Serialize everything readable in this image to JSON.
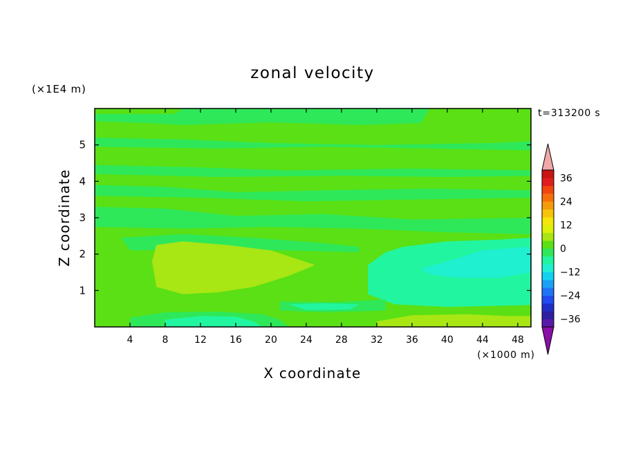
{
  "chart_data": {
    "type": "heatmap",
    "title": "zonal velocity",
    "xlabel": "X coordinate",
    "ylabel": "Z coordinate",
    "x_scale_label": "(×1000 m)",
    "y_scale_label": "(×1E4 m)",
    "time_label": "t=313200 s",
    "xlim": [
      0,
      49.5
    ],
    "ylim": [
      0,
      6
    ],
    "x_ticks": [
      4,
      8,
      12,
      16,
      20,
      24,
      28,
      32,
      36,
      40,
      44,
      48
    ],
    "y_ticks": [
      1,
      2,
      3,
      4,
      5
    ],
    "background_value": 1,
    "regions": [
      {
        "name": "upper-teal-band",
        "value": -3,
        "points": [
          [
            0,
            5.65
          ],
          [
            6,
            5.6
          ],
          [
            10,
            5.55
          ],
          [
            20,
            5.62
          ],
          [
            30,
            5.55
          ],
          [
            37,
            5.6
          ],
          [
            38,
            6
          ],
          [
            10,
            6
          ],
          [
            9,
            5.85
          ],
          [
            0,
            5.85
          ]
        ]
      },
      {
        "name": "band-5",
        "value": -3,
        "points": [
          [
            0,
            5.2
          ],
          [
            10,
            5.15
          ],
          [
            20,
            5.05
          ],
          [
            32,
            5.0
          ],
          [
            45,
            5.05
          ],
          [
            49.5,
            5.1
          ],
          [
            49.5,
            4.85
          ],
          [
            38,
            4.9
          ],
          [
            26,
            4.95
          ],
          [
            14,
            4.9
          ],
          [
            0,
            4.95
          ]
        ]
      },
      {
        "name": "band-4.5",
        "value": -3,
        "points": [
          [
            0,
            4.45
          ],
          [
            12,
            4.38
          ],
          [
            22,
            4.3
          ],
          [
            36,
            4.35
          ],
          [
            49.5,
            4.3
          ],
          [
            49.5,
            4.15
          ],
          [
            40,
            4.12
          ],
          [
            28,
            4.15
          ],
          [
            14,
            4.12
          ],
          [
            0,
            4.2
          ]
        ]
      },
      {
        "name": "band-4",
        "value": -3,
        "points": [
          [
            0,
            3.9
          ],
          [
            8,
            3.85
          ],
          [
            16,
            3.7
          ],
          [
            26,
            3.75
          ],
          [
            38,
            3.8
          ],
          [
            49.5,
            3.75
          ],
          [
            49.5,
            3.55
          ],
          [
            36,
            3.5
          ],
          [
            24,
            3.45
          ],
          [
            12,
            3.55
          ],
          [
            0,
            3.6
          ]
        ]
      },
      {
        "name": "band-3",
        "value": -3,
        "points": [
          [
            0,
            3.3
          ],
          [
            8,
            3.25
          ],
          [
            16,
            3.05
          ],
          [
            26,
            3.1
          ],
          [
            36,
            2.95
          ],
          [
            49.5,
            3.0
          ],
          [
            49.5,
            2.55
          ],
          [
            40,
            2.6
          ],
          [
            30,
            2.7
          ],
          [
            20,
            2.75
          ],
          [
            10,
            2.7
          ],
          [
            0,
            2.75
          ]
        ]
      },
      {
        "name": "band-2.2",
        "value": -3,
        "points": [
          [
            3,
            2.45
          ],
          [
            10,
            2.55
          ],
          [
            18,
            2.45
          ],
          [
            26,
            2.3
          ],
          [
            30,
            2.2
          ],
          [
            30,
            2.05
          ],
          [
            22,
            2.1
          ],
          [
            14,
            2.15
          ],
          [
            4,
            2.1
          ]
        ]
      },
      {
        "name": "right-teal-region",
        "value": -5,
        "points": [
          [
            35,
            2.2
          ],
          [
            40,
            2.35
          ],
          [
            46,
            2.4
          ],
          [
            49.5,
            2.45
          ],
          [
            49.5,
            0.6
          ],
          [
            40,
            0.55
          ],
          [
            34,
            0.62
          ],
          [
            31,
            0.9
          ],
          [
            31,
            1.7
          ],
          [
            33,
            2.05
          ]
        ]
      },
      {
        "name": "right-cyan-lobe",
        "value": -9,
        "points": [
          [
            37,
            1.6
          ],
          [
            40,
            1.8
          ],
          [
            44,
            2.1
          ],
          [
            49,
            2.2
          ],
          [
            49.5,
            2.1
          ],
          [
            49.5,
            1.5
          ],
          [
            46,
            1.35
          ],
          [
            41,
            1.35
          ],
          [
            38,
            1.45
          ]
        ]
      },
      {
        "name": "mid-teal-blob",
        "value": -4,
        "points": [
          [
            21,
            0.7
          ],
          [
            27,
            0.68
          ],
          [
            33,
            0.75
          ],
          [
            33,
            0.45
          ],
          [
            26,
            0.4
          ],
          [
            21,
            0.45
          ]
        ]
      },
      {
        "name": "mid-cyan-patch",
        "value": -7,
        "points": [
          [
            22,
            0.62
          ],
          [
            26,
            0.65
          ],
          [
            30,
            0.62
          ],
          [
            29,
            0.48
          ],
          [
            24,
            0.46
          ]
        ]
      },
      {
        "name": "bottom-teal",
        "value": -4,
        "points": [
          [
            4,
            0
          ],
          [
            4,
            0.25
          ],
          [
            8,
            0.4
          ],
          [
            14,
            0.42
          ],
          [
            19,
            0.35
          ],
          [
            21,
            0.2
          ],
          [
            22,
            0
          ],
          [
            0,
            0
          ]
        ]
      },
      {
        "name": "bottom-cyan",
        "value": -8,
        "points": [
          [
            8,
            0
          ],
          [
            8,
            0.2
          ],
          [
            12,
            0.3
          ],
          [
            16,
            0.28
          ],
          [
            18,
            0.15
          ],
          [
            19,
            0
          ]
        ]
      },
      {
        "name": "left-yellowgreen",
        "value": 4,
        "points": [
          [
            7,
            2.25
          ],
          [
            10,
            2.35
          ],
          [
            15,
            2.25
          ],
          [
            20,
            2.1
          ],
          [
            25,
            1.7
          ],
          [
            22,
            1.4
          ],
          [
            18,
            1.1
          ],
          [
            14,
            0.95
          ],
          [
            10,
            0.9
          ],
          [
            7,
            1.1
          ],
          [
            6.5,
            1.8
          ]
        ]
      },
      {
        "name": "left-yellow-core",
        "value": 7,
        "points": [
          [
            12,
            2.1
          ],
          [
            16,
            2.15
          ],
          [
            20,
            2.0
          ],
          [
            23.5,
            1.75
          ],
          [
            21,
            1.65
          ],
          [
            18,
            1.85
          ],
          [
            14,
            1.95
          ],
          [
            11,
            1.95
          ]
        ]
      },
      {
        "name": "right-bottom-yellowgreen",
        "value": 4,
        "points": [
          [
            32,
            0.15
          ],
          [
            36,
            0.32
          ],
          [
            42,
            0.35
          ],
          [
            47,
            0.3
          ],
          [
            49.5,
            0.3
          ],
          [
            49.5,
            0
          ],
          [
            32,
            0
          ]
        ]
      },
      {
        "name": "right-bottom-core",
        "value": 6,
        "points": [
          [
            37,
            0.05
          ],
          [
            41,
            0.25
          ],
          [
            45,
            0.25
          ],
          [
            48,
            0.15
          ],
          [
            48,
            0
          ],
          [
            37,
            0
          ]
        ]
      }
    ],
    "colorbar": {
      "labels": [
        "36",
        "24",
        "12",
        "0",
        "−12",
        "−24",
        "−36"
      ],
      "label_values": [
        36,
        24,
        12,
        0,
        -12,
        -24,
        -36
      ],
      "levels": [
        -40,
        -36,
        -32,
        -28,
        -24,
        -20,
        -16,
        -12,
        -8,
        -4,
        0,
        4,
        8,
        12,
        16,
        20,
        24,
        28,
        32,
        36,
        40
      ],
      "colors": [
        "#5a1aa8",
        "#2d1fa0",
        "#1f2ec8",
        "#1f4bf0",
        "#1f74f5",
        "#1aa0f5",
        "#12d2f2",
        "#1ef0d0",
        "#22f5a0",
        "#2ee85a",
        "#5ae014",
        "#a8e614",
        "#dcf00a",
        "#f5e60a",
        "#f5c30a",
        "#f59b0a",
        "#f5700a",
        "#f0460f",
        "#e01e1e",
        "#c81414"
      ],
      "under_color": "#8a0fa8",
      "over_color": "#f0a8a8"
    }
  }
}
